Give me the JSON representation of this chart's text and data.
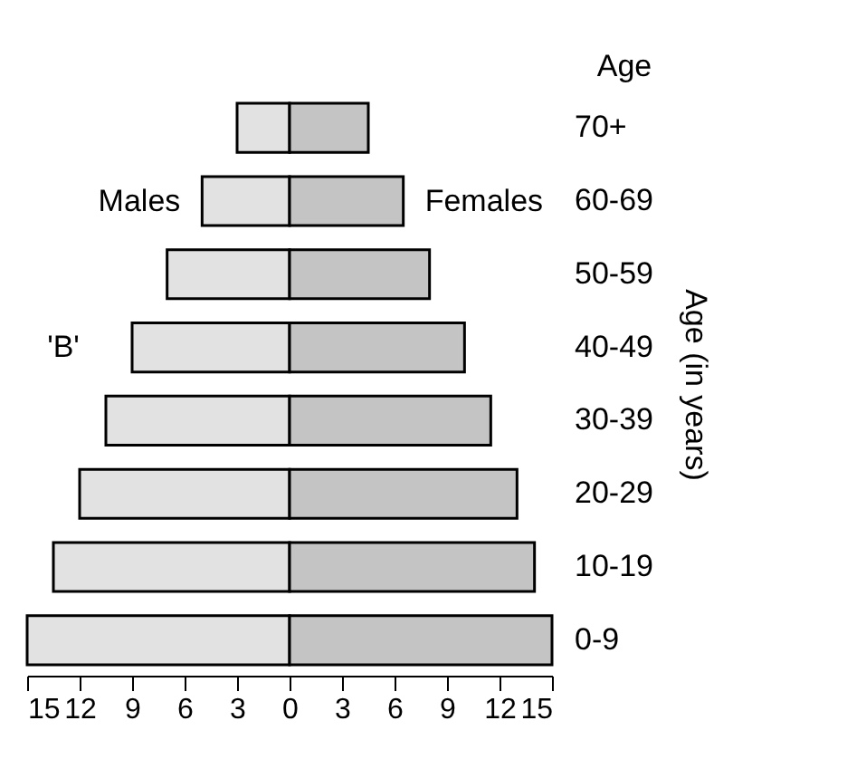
{
  "chart_data": {
    "type": "bar",
    "orientation": "horizontal",
    "categories": [
      "70+",
      "60-69",
      "50-59",
      "40-49",
      "30-39",
      "20-29",
      "10-19",
      "0-9"
    ],
    "series": [
      {
        "name": "Males",
        "color": "#e2e2e2",
        "values": [
          -3,
          -5,
          -7,
          -9,
          -10.5,
          -12,
          -13.5,
          -15
        ]
      },
      {
        "name": "Females",
        "color": "#c4c4c4",
        "values": [
          4.5,
          6.5,
          8,
          10,
          11.5,
          13,
          14,
          15
        ]
      }
    ],
    "xlim": [
      -15,
      15
    ],
    "xticks": [
      {
        "value": -15,
        "label": "15"
      },
      {
        "value": -12,
        "label": "12"
      },
      {
        "value": -9,
        "label": "9"
      },
      {
        "value": -6,
        "label": "6"
      },
      {
        "value": -3,
        "label": "3"
      },
      0,
      3,
      6,
      9,
      12,
      15
    ],
    "ylabel": "Age (in years)",
    "annotations": [
      "'B'",
      "Age"
    ],
    "stacked": true,
    "grid": false,
    "legend": false
  }
}
